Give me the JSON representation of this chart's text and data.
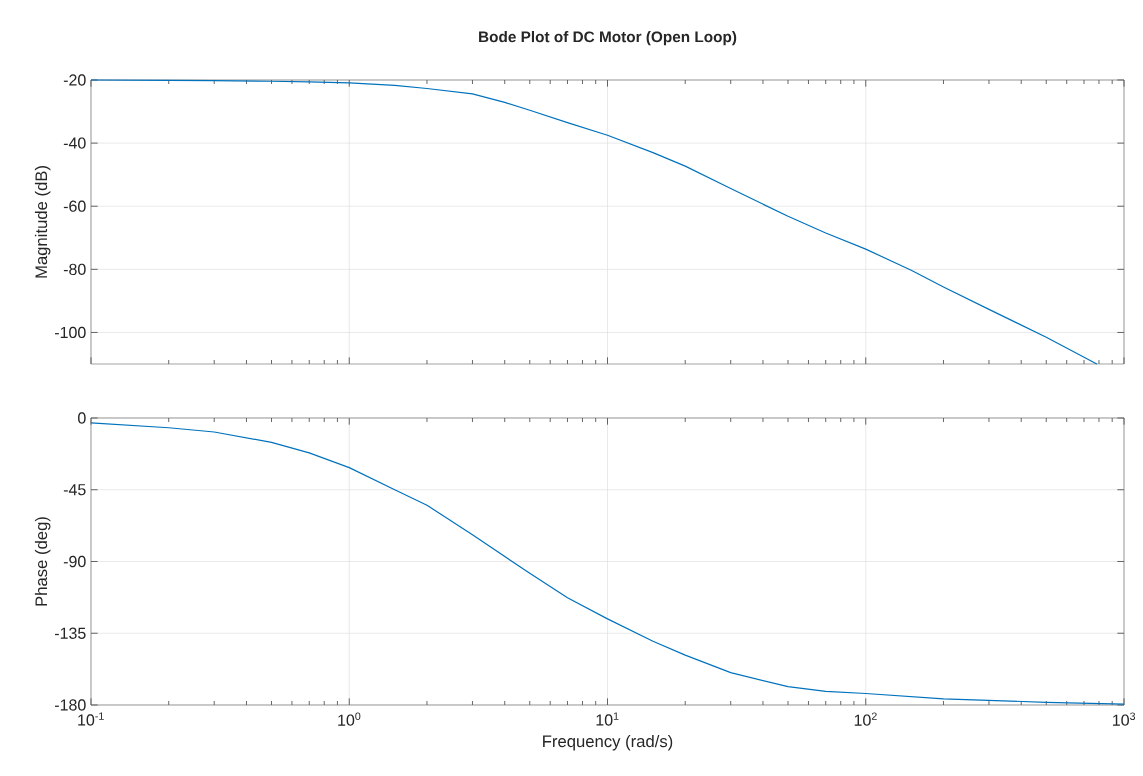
{
  "chart_data": [
    {
      "type": "line",
      "title": "Bode Plot of DC Motor (Open Loop)",
      "ylabel": "Magnitude (dB)",
      "x": [
        0.1,
        0.2,
        0.3,
        0.5,
        0.7,
        1,
        1.5,
        2,
        3,
        4,
        5,
        7,
        10,
        15,
        20,
        30,
        50,
        70,
        100,
        150,
        200,
        300,
        500,
        785
      ],
      "series": [
        {
          "color": "#0072bd",
          "values": [
            -20.0,
            -20.1,
            -20.2,
            -20.4,
            -20.6,
            -20.9,
            -21.7,
            -22.7,
            -24.4,
            -27.1,
            -29.6,
            -33.5,
            -37.5,
            -43.0,
            -47.3,
            -54.4,
            -63.2,
            -68.5,
            -73.6,
            -80.3,
            -85.6,
            -92.7,
            -101.5,
            -110
          ]
        }
      ],
      "xlim": [
        0.1,
        1000
      ],
      "ylim": [
        -110,
        -20
      ],
      "xticks": [
        {
          "value": 0.1,
          "label": null
        },
        {
          "value": 1,
          "label": null
        },
        {
          "value": 10,
          "label": null
        },
        {
          "value": 100,
          "label": null
        },
        {
          "value": 1000,
          "label": null
        }
      ],
      "yticks": [
        -20,
        -40,
        -60,
        -80,
        -100
      ],
      "log": "x",
      "grid": true,
      "tick_labels": "y"
    },
    {
      "type": "line",
      "xlabel": "Frequency (rad/s)",
      "ylabel": "Phase (deg)",
      "x": [
        0.1,
        0.2,
        0.3,
        0.5,
        0.7,
        1,
        1.5,
        2,
        3,
        5,
        7,
        10,
        15,
        20,
        30,
        50,
        70,
        100,
        200,
        500,
        1000
      ],
      "series": [
        {
          "color": "#0072bd",
          "values": [
            -3.1,
            -6.1,
            -8.8,
            -15.3,
            -21.9,
            -31.1,
            -45,
            -54.7,
            -73.3,
            -97.4,
            -112.7,
            -126,
            -140,
            -148.7,
            -159.7,
            -168.5,
            -171.5,
            -172.8,
            -176.1,
            -178.3,
            -179.4
          ]
        }
      ],
      "xlim": [
        0.1,
        1000
      ],
      "ylim": [
        -180,
        0
      ],
      "xticks": [
        {
          "value": 0.1,
          "label": "10$^{-1}$"
        },
        {
          "value": 1,
          "label": "10$^{0}$"
        },
        {
          "value": 10,
          "label": "10$^{1}$"
        },
        {
          "value": 100,
          "label": "10$^{2}$"
        },
        {
          "value": 1000,
          "label": "10$^{3}$"
        }
      ],
      "yticks": [
        0,
        -45,
        -90,
        -135,
        -180
      ],
      "log": "x",
      "grid": true
    }
  ]
}
